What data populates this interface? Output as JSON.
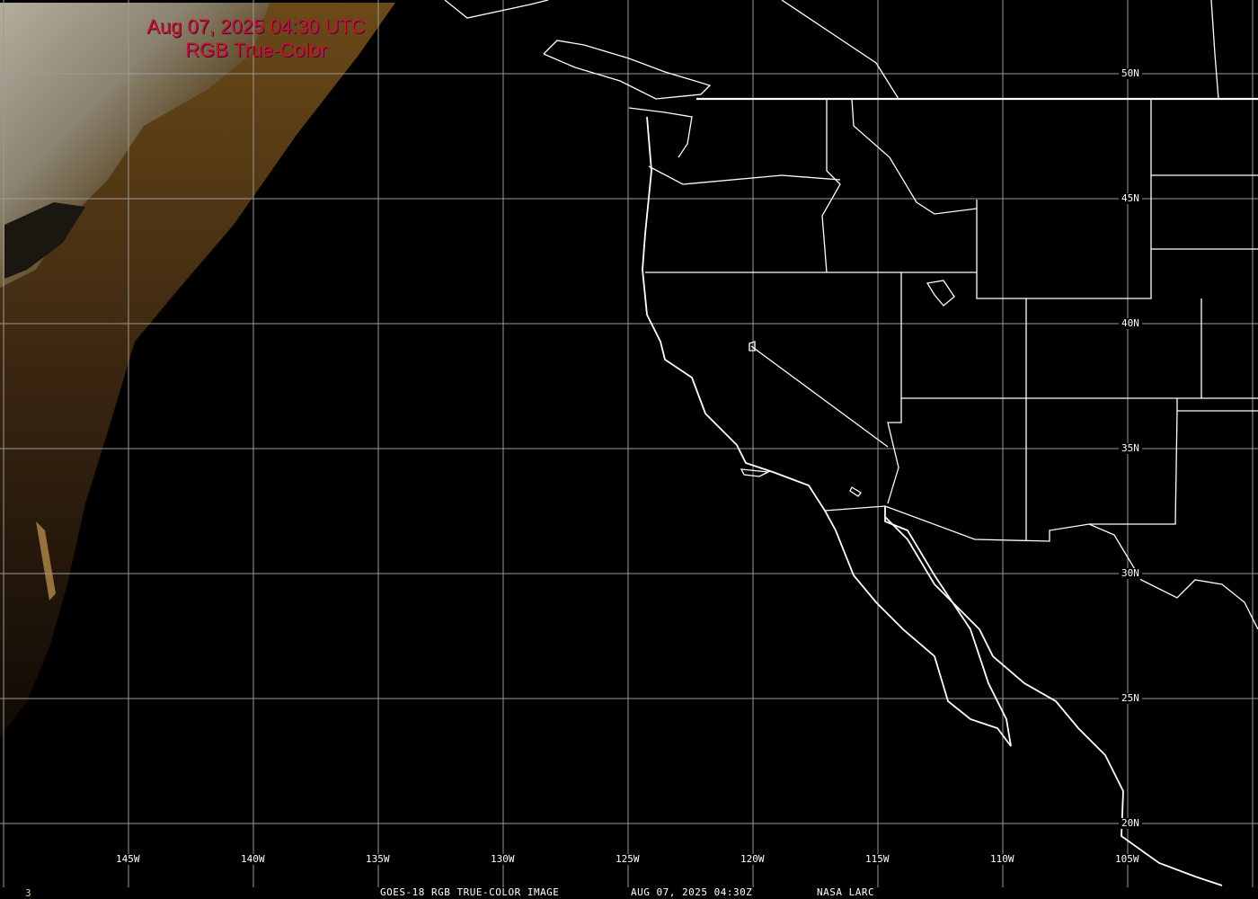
{
  "title": {
    "line1": "Aug 07, 2025 04:30 UTC",
    "line2": "RGB True-Color"
  },
  "longitude_labels": [
    "145W",
    "140W",
    "135W",
    "130W",
    "125W",
    "120W",
    "115W",
    "110W",
    "105W"
  ],
  "latitude_labels": [
    "50N",
    "45N",
    "40N",
    "35N",
    "30N",
    "25N",
    "20N"
  ],
  "caption": {
    "product": "GOES-18 RGB TRUE-COLOR IMAGE",
    "datetime": "AUG 07, 2025 04:30Z",
    "source": "NASA LARC"
  },
  "frame_number": "3",
  "colors": {
    "title": "#d0102a",
    "grid": "#9a9a9a",
    "borders": "#ffffff",
    "frame_number": "#e8d070"
  }
}
